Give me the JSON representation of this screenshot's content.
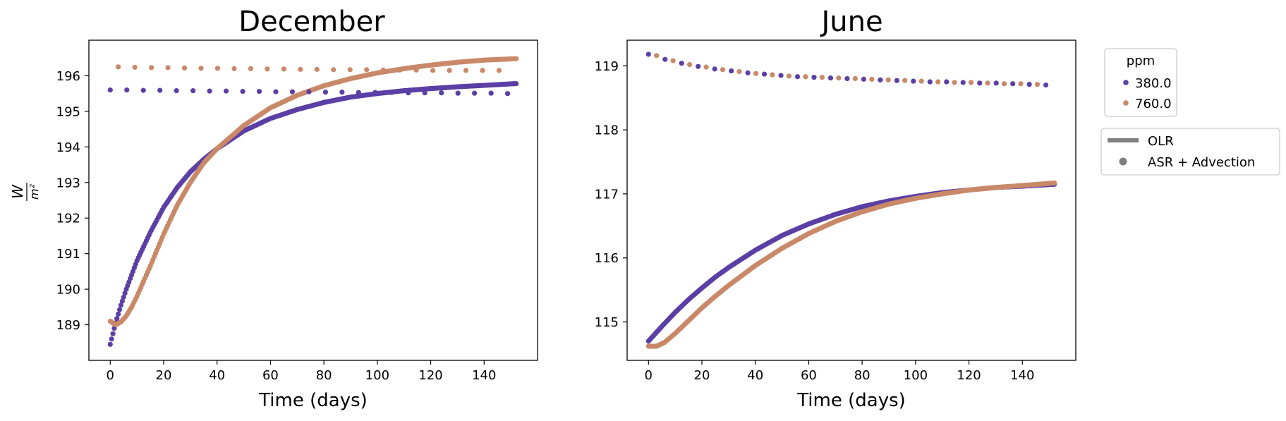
{
  "colors": {
    "ppm380": "#5b3fa5",
    "ppm760": "#c98968",
    "style_key": "#808080"
  },
  "legend_ppm": {
    "title": "ppm",
    "items": [
      {
        "label": "380.0",
        "color": "#5b3fa5"
      },
      {
        "label": "760.0",
        "color": "#c98968"
      }
    ]
  },
  "legend_style": {
    "items": [
      {
        "label": "OLR",
        "marker": "line"
      },
      {
        "label": "ASR + Advection",
        "marker": "dot"
      }
    ]
  },
  "chart_data": [
    {
      "type": "scatter",
      "title": "December",
      "xlabel": "Time (days)",
      "ylabel": "W/m²",
      "xlim": [
        -8,
        160
      ],
      "ylim": [
        188.0,
        197.0
      ],
      "xticks": [
        0,
        20,
        40,
        60,
        80,
        100,
        120,
        140
      ],
      "yticks": [
        189,
        190,
        191,
        192,
        193,
        194,
        195,
        196
      ],
      "grid": false,
      "series": [
        {
          "name": "380.0",
          "kind": "OLR",
          "curve": "dense",
          "x": [
            0,
            2,
            4,
            6,
            8,
            10,
            15,
            20,
            25,
            30,
            35,
            40,
            50,
            60,
            70,
            80,
            90,
            100,
            110,
            120,
            130,
            140,
            152
          ],
          "y": [
            188.45,
            189.05,
            189.55,
            190.0,
            190.4,
            190.8,
            191.6,
            192.3,
            192.85,
            193.3,
            193.65,
            193.95,
            194.45,
            194.8,
            195.05,
            195.25,
            195.4,
            195.5,
            195.58,
            195.64,
            195.69,
            195.73,
            195.78
          ]
        },
        {
          "name": "760.0",
          "kind": "OLR",
          "curve": "dense",
          "x": [
            0,
            2,
            4,
            6,
            8,
            10,
            15,
            20,
            25,
            30,
            35,
            40,
            50,
            60,
            70,
            80,
            90,
            100,
            110,
            120,
            130,
            140,
            152
          ],
          "y": [
            189.1,
            189.0,
            189.08,
            189.25,
            189.5,
            189.8,
            190.65,
            191.55,
            192.35,
            193.0,
            193.55,
            193.95,
            194.6,
            195.1,
            195.45,
            195.72,
            195.92,
            196.08,
            196.2,
            196.3,
            196.38,
            196.44,
            196.48
          ]
        },
        {
          "name": "380.0",
          "kind": "ASR + Advection",
          "curve": "sparse",
          "x": [
            0,
            6.2,
            12.4,
            18.6,
            24.8,
            31,
            37.2,
            43.4,
            49.6,
            55.8,
            62,
            68.2,
            74.4,
            80.6,
            86.8,
            93,
            99.2,
            105.4,
            111.6,
            117.8,
            124,
            130.2,
            136.4,
            142.6,
            148.8
          ],
          "y": [
            195.6,
            195.6,
            195.59,
            195.59,
            195.58,
            195.58,
            195.57,
            195.57,
            195.56,
            195.56,
            195.55,
            195.55,
            195.55,
            195.54,
            195.54,
            195.53,
            195.53,
            195.53,
            195.52,
            195.52,
            195.52,
            195.51,
            195.51,
            195.51,
            195.5
          ]
        },
        {
          "name": "760.0",
          "kind": "ASR + Advection",
          "curve": "sparse",
          "x": [
            3,
            9.2,
            15.4,
            21.6,
            27.8,
            34,
            40.2,
            46.4,
            52.6,
            58.8,
            65,
            71.2,
            77.4,
            83.6,
            89.8,
            96,
            102.2,
            108.4,
            114.6,
            120.8,
            127,
            133.2,
            139.4,
            145.6
          ],
          "y": [
            196.25,
            196.24,
            196.23,
            196.23,
            196.22,
            196.21,
            196.21,
            196.2,
            196.2,
            196.19,
            196.19,
            196.18,
            196.18,
            196.17,
            196.17,
            196.17,
            196.16,
            196.16,
            196.16,
            196.15,
            196.15,
            196.15,
            196.15,
            196.15
          ]
        }
      ]
    },
    {
      "type": "scatter",
      "title": "June",
      "xlabel": "Time (days)",
      "ylabel": "",
      "xlim": [
        -8,
        160
      ],
      "ylim": [
        114.4,
        119.4
      ],
      "xticks": [
        0,
        20,
        40,
        60,
        80,
        100,
        120,
        140
      ],
      "yticks": [
        115,
        116,
        117,
        118,
        119
      ],
      "grid": false,
      "series": [
        {
          "name": "380.0",
          "kind": "OLR",
          "curve": "dense",
          "x": [
            0,
            5,
            10,
            15,
            20,
            25,
            30,
            40,
            50,
            60,
            70,
            80,
            90,
            100,
            110,
            120,
            130,
            140,
            152
          ],
          "y": [
            114.7,
            114.93,
            115.15,
            115.35,
            115.53,
            115.7,
            115.85,
            116.12,
            116.35,
            116.53,
            116.68,
            116.8,
            116.89,
            116.96,
            117.02,
            117.06,
            117.1,
            117.12,
            117.15
          ]
        },
        {
          "name": "760.0",
          "kind": "OLR",
          "curve": "dense",
          "x": [
            0,
            3,
            6,
            10,
            15,
            20,
            25,
            30,
            40,
            50,
            60,
            70,
            80,
            90,
            100,
            110,
            120,
            130,
            140,
            152
          ],
          "y": [
            114.62,
            114.62,
            114.68,
            114.82,
            115.02,
            115.22,
            115.4,
            115.57,
            115.88,
            116.15,
            116.38,
            116.57,
            116.72,
            116.84,
            116.93,
            117.0,
            117.06,
            117.1,
            117.13,
            117.17
          ]
        },
        {
          "name": "380.0",
          "kind": "ASR + Advection",
          "curve": "sparse",
          "x": [
            0,
            6.2,
            12.4,
            18.6,
            24.8,
            31,
            37.2,
            43.4,
            49.6,
            55.8,
            62,
            68.2,
            74.4,
            80.6,
            86.8,
            93,
            99.2,
            105.4,
            111.6,
            117.8,
            124,
            130.2,
            136.4,
            142.6,
            148.8
          ],
          "y": [
            119.18,
            119.1,
            119.04,
            118.99,
            118.95,
            118.92,
            118.89,
            118.87,
            118.85,
            118.83,
            118.82,
            118.81,
            118.8,
            118.79,
            118.78,
            118.77,
            118.76,
            118.75,
            118.75,
            118.74,
            118.73,
            118.73,
            118.72,
            118.71,
            118.7
          ]
        },
        {
          "name": "760.0",
          "kind": "ASR + Advection",
          "curve": "sparse",
          "x": [
            3,
            9.2,
            15.4,
            21.6,
            27.8,
            34,
            40.2,
            46.4,
            52.6,
            58.8,
            65,
            71.2,
            77.4,
            83.6,
            89.8,
            96,
            102.2,
            108.4,
            114.6,
            120.8,
            127,
            133.2,
            139.4,
            145.6
          ],
          "y": [
            119.16,
            119.08,
            119.02,
            118.98,
            118.94,
            118.91,
            118.88,
            118.86,
            118.84,
            118.83,
            118.82,
            118.81,
            118.8,
            118.79,
            118.78,
            118.77,
            118.76,
            118.75,
            118.74,
            118.74,
            118.73,
            118.72,
            118.72,
            118.71
          ]
        }
      ]
    }
  ]
}
